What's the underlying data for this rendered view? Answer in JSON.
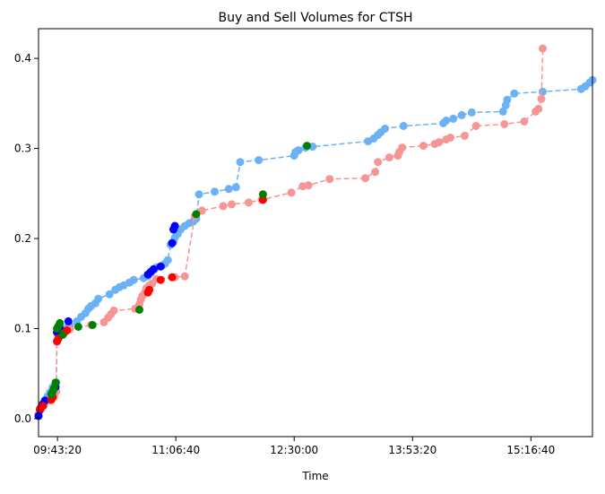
{
  "chart_data": {
    "type": "scatter",
    "title": "Buy and Sell Volumes for CTSH",
    "xlabel": "Time",
    "ylabel": "",
    "x_axis": {
      "type": "time",
      "range": [
        "09:30:00",
        "16:00:00"
      ],
      "ticks": [
        "09:43:20",
        "11:06:40",
        "12:30:00",
        "13:53:20",
        "15:16:40"
      ]
    },
    "y_axis": {
      "range": [
        -0.02,
        0.433
      ],
      "ticks": [
        "0.0",
        "0.1",
        "0.2",
        "0.3",
        "0.4"
      ]
    },
    "grid": false,
    "legend": "none",
    "colors": {
      "blue_line": "#6ab2f5",
      "red_line": "#f79595",
      "buy_marker": "#0000ff",
      "sell_marker": "#ff0000",
      "highlight_marker": "#008000"
    },
    "series": [
      {
        "color": "#6ab2f5",
        "line": "dashed",
        "points": [
          [
            "09:30:00",
            0.003
          ],
          [
            "09:31:00",
            0.01
          ],
          [
            "09:33:00",
            0.016
          ],
          [
            "09:34:30",
            0.02
          ],
          [
            "09:36:30",
            0.025
          ],
          [
            "09:38:00",
            0.029
          ],
          [
            "09:40:00",
            0.035
          ],
          [
            "09:42:30",
            0.04
          ],
          [
            "09:43:00",
            0.095
          ],
          [
            "09:44:30",
            0.098
          ],
          [
            "09:47:00",
            0.1
          ],
          [
            "09:50:00",
            0.101
          ],
          [
            "09:52:00",
            0.103
          ],
          [
            "09:57:00",
            0.108
          ],
          [
            "10:00:00",
            0.113
          ],
          [
            "10:03:00",
            0.117
          ],
          [
            "10:05:00",
            0.122
          ],
          [
            "10:07:00",
            0.125
          ],
          [
            "10:10:00",
            0.128
          ],
          [
            "10:12:00",
            0.133
          ],
          [
            "10:20:00",
            0.138
          ],
          [
            "10:24:00",
            0.143
          ],
          [
            "10:27:00",
            0.146
          ],
          [
            "10:30:00",
            0.148
          ],
          [
            "10:34:00",
            0.151
          ],
          [
            "10:37:00",
            0.154
          ],
          [
            "10:44:00",
            0.156
          ],
          [
            "10:47:00",
            0.158
          ],
          [
            "10:49:00",
            0.162
          ],
          [
            "10:51:00",
            0.165
          ],
          [
            "10:53:00",
            0.168
          ],
          [
            "10:57:00",
            0.17
          ],
          [
            "10:59:00",
            0.172
          ],
          [
            "11:01:00",
            0.176
          ],
          [
            "11:03:00",
            0.193
          ],
          [
            "11:05:00",
            0.196
          ],
          [
            "11:06:00",
            0.201
          ],
          [
            "11:08:00",
            0.205
          ],
          [
            "11:10:00",
            0.21
          ],
          [
            "11:13:00",
            0.214
          ],
          [
            "11:16:00",
            0.217
          ],
          [
            "11:19:00",
            0.219
          ],
          [
            "11:21:00",
            0.222
          ],
          [
            "11:23:00",
            0.249
          ],
          [
            "11:34:00",
            0.252
          ],
          [
            "11:44:00",
            0.255
          ],
          [
            "11:49:00",
            0.257
          ],
          [
            "11:52:00",
            0.285
          ],
          [
            "12:05:00",
            0.287
          ],
          [
            "12:30:00",
            0.292
          ],
          [
            "12:31:00",
            0.296
          ],
          [
            "12:33:00",
            0.298
          ],
          [
            "12:38:00",
            0.301
          ],
          [
            "12:43:00",
            0.302
          ],
          [
            "13:22:00",
            0.308
          ],
          [
            "13:26:00",
            0.311
          ],
          [
            "13:29:00",
            0.315
          ],
          [
            "13:31:00",
            0.318
          ],
          [
            "13:34:00",
            0.322
          ],
          [
            "13:47:00",
            0.325
          ],
          [
            "14:15:00",
            0.328
          ],
          [
            "14:17:00",
            0.331
          ],
          [
            "14:22:00",
            0.333
          ],
          [
            "14:28:00",
            0.337
          ],
          [
            "14:35:00",
            0.34
          ],
          [
            "14:57:00",
            0.341
          ],
          [
            "14:59:00",
            0.348
          ],
          [
            "15:00:00",
            0.354
          ],
          [
            "15:05:00",
            0.361
          ],
          [
            "15:25:00",
            0.363
          ],
          [
            "15:52:00",
            0.366
          ],
          [
            "15:55:00",
            0.369
          ],
          [
            "15:58:00",
            0.373
          ],
          [
            "16:00:00",
            0.376
          ]
        ]
      },
      {
        "color": "#f79595",
        "line": "dashed",
        "points": [
          [
            "09:30:00",
            0.005
          ],
          [
            "09:32:00",
            0.011
          ],
          [
            "09:34:00",
            0.015
          ],
          [
            "09:38:00",
            0.02
          ],
          [
            "09:41:00",
            0.024
          ],
          [
            "09:42:30",
            0.03
          ],
          [
            "09:43:00",
            0.085
          ],
          [
            "09:44:00",
            0.089
          ],
          [
            "09:46:00",
            0.093
          ],
          [
            "09:49:00",
            0.097
          ],
          [
            "09:52:00",
            0.099
          ],
          [
            "10:07:00",
            0.104
          ],
          [
            "10:16:00",
            0.107
          ],
          [
            "10:19:00",
            0.112
          ],
          [
            "10:21:00",
            0.116
          ],
          [
            "10:23:00",
            0.12
          ],
          [
            "10:38:00",
            0.122
          ],
          [
            "10:41:00",
            0.127
          ],
          [
            "10:42:00",
            0.132
          ],
          [
            "10:43:00",
            0.136
          ],
          [
            "10:45:00",
            0.14
          ],
          [
            "10:46:00",
            0.145
          ],
          [
            "10:48:00",
            0.148
          ],
          [
            "10:50:00",
            0.15
          ],
          [
            "10:53:00",
            0.155
          ],
          [
            "11:06:00",
            0.157
          ],
          [
            "11:13:00",
            0.158
          ],
          [
            "11:20:00",
            0.225
          ],
          [
            "11:25:00",
            0.231
          ],
          [
            "11:40:00",
            0.236
          ],
          [
            "11:46:00",
            0.238
          ],
          [
            "11:58:00",
            0.24
          ],
          [
            "12:07:00",
            0.243
          ],
          [
            "12:28:00",
            0.251
          ],
          [
            "12:36:00",
            0.258
          ],
          [
            "12:40:00",
            0.259
          ],
          [
            "12:55:00",
            0.266
          ],
          [
            "13:20:00",
            0.267
          ],
          [
            "13:27:00",
            0.274
          ],
          [
            "13:29:00",
            0.285
          ],
          [
            "13:37:00",
            0.29
          ],
          [
            "13:43:00",
            0.292
          ],
          [
            "13:44:00",
            0.296
          ],
          [
            "13:46:00",
            0.301
          ],
          [
            "14:01:00",
            0.303
          ],
          [
            "14:09:00",
            0.305
          ],
          [
            "14:12:00",
            0.307
          ],
          [
            "14:17:00",
            0.31
          ],
          [
            "14:20:00",
            0.312
          ],
          [
            "14:30:00",
            0.314
          ],
          [
            "14:38:00",
            0.325
          ],
          [
            "14:58:00",
            0.327
          ],
          [
            "15:12:00",
            0.33
          ],
          [
            "15:20:00",
            0.341
          ],
          [
            "15:22:00",
            0.344
          ],
          [
            "15:24:00",
            0.355
          ],
          [
            "15:25:00",
            0.411
          ]
        ]
      },
      {
        "color": "#0000ff",
        "line": "none",
        "points": [
          [
            "09:30:00",
            0.003
          ],
          [
            "09:31:00",
            0.01
          ],
          [
            "09:33:00",
            0.016
          ],
          [
            "09:34:30",
            0.02
          ],
          [
            "09:42:00",
            0.035
          ],
          [
            "09:43:00",
            0.096
          ],
          [
            "09:45:00",
            0.1
          ],
          [
            "09:51:00",
            0.108
          ],
          [
            "10:47:00",
            0.16
          ],
          [
            "10:49:00",
            0.163
          ],
          [
            "10:51:00",
            0.166
          ],
          [
            "10:56:00",
            0.169
          ],
          [
            "11:04:00",
            0.195
          ],
          [
            "11:05:00",
            0.21
          ],
          [
            "11:06:00",
            0.214
          ]
        ]
      },
      {
        "color": "#ff0000",
        "line": "none",
        "points": [
          [
            "09:31:00",
            0.011
          ],
          [
            "09:33:00",
            0.014
          ],
          [
            "09:39:00",
            0.021
          ],
          [
            "09:40:00",
            0.024
          ],
          [
            "09:43:00",
            0.086
          ],
          [
            "09:44:00",
            0.089
          ],
          [
            "09:48:00",
            0.095
          ],
          [
            "09:50:00",
            0.098
          ],
          [
            "10:47:00",
            0.14
          ],
          [
            "10:48:00",
            0.143
          ],
          [
            "10:56:00",
            0.154
          ],
          [
            "11:04:00",
            0.157
          ],
          [
            "12:08:00",
            0.243
          ]
        ]
      },
      {
        "color": "#008000",
        "line": "none",
        "points": [
          [
            "09:39:00",
            0.027
          ],
          [
            "09:40:00",
            0.03
          ],
          [
            "09:41:00",
            0.034
          ],
          [
            "09:42:00",
            0.04
          ],
          [
            "09:43:00",
            0.1
          ],
          [
            "09:44:00",
            0.103
          ],
          [
            "09:45:00",
            0.106
          ],
          [
            "09:47:00",
            0.093
          ],
          [
            "09:58:00",
            0.102
          ],
          [
            "10:08:00",
            0.104
          ],
          [
            "10:41:00",
            0.121
          ],
          [
            "11:21:00",
            0.227
          ],
          [
            "12:08:00",
            0.249
          ],
          [
            "12:39:00",
            0.303
          ]
        ]
      }
    ]
  }
}
